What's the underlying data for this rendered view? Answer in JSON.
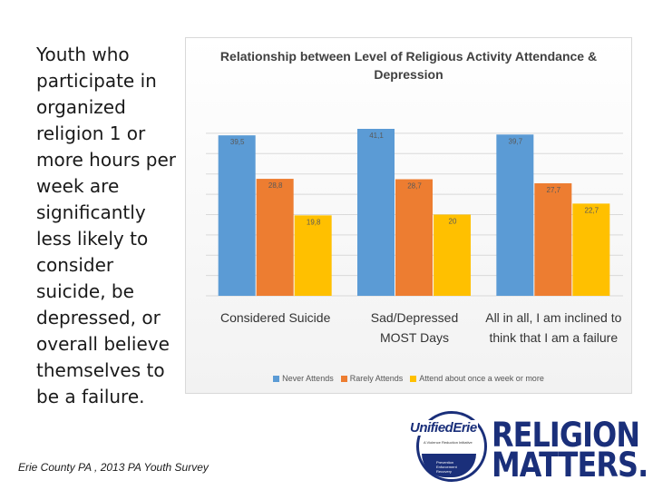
{
  "slide": {
    "left_text": "Youth who participate in organized religion 1 or more hours per week are significantly less likely to consider suicide, be depressed, or overall believe themselves to be a failure.",
    "footnote": "Erie County PA , 2013 PA Youth Survey"
  },
  "logo": {
    "unified": "UnifiedErie",
    "unified_sub": "A Violence Reduction Initiative",
    "swoosh_text": "Prevention Enforcement Recovery",
    "religion": "RELIGION",
    "matters": "MATTERS."
  },
  "chart_data": {
    "type": "bar",
    "title": "Relationship between Level of Religious Activity Attendance & Depression",
    "categories": [
      "Considered Suicide",
      "Sad/Depressed MOST Days",
      "All in all, I am inclined to think that I am a failure"
    ],
    "series": [
      {
        "name": "Never Attends",
        "values": [
          39.5,
          41.1,
          39.7
        ],
        "labels": [
          "39,5",
          "41,1",
          "39,7"
        ],
        "color": "#5b9bd5"
      },
      {
        "name": "Rarely Attends",
        "values": [
          28.8,
          28.7,
          27.7
        ],
        "labels": [
          "28,8",
          "28,7",
          "27,7"
        ],
        "color": "#ed7d31"
      },
      {
        "name": "Attend about once a week or more",
        "values": [
          19.8,
          20,
          22.7
        ],
        "labels": [
          "19,8",
          "20",
          "22,7"
        ],
        "color": "#ffc000"
      }
    ],
    "ylim": [
      0,
      45
    ],
    "grid": true,
    "legend_position": "bottom"
  }
}
